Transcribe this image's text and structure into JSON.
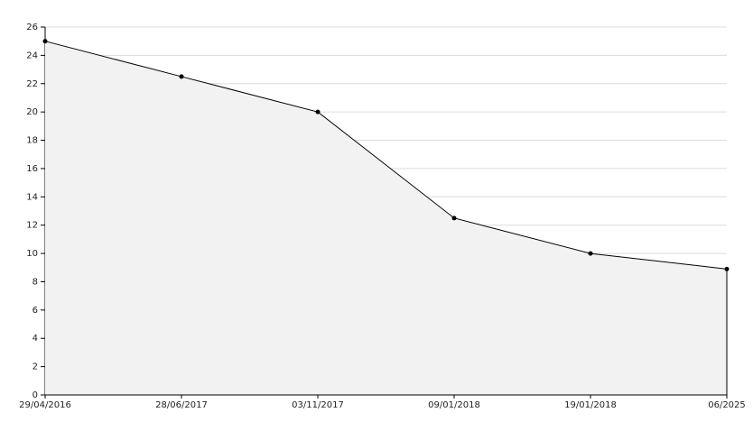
{
  "chart_data": {
    "type": "area",
    "categories": [
      "29/04/2016",
      "28/06/2017",
      "03/11/2017",
      "09/01/2018",
      "19/01/2018",
      "06/2025"
    ],
    "values": [
      25,
      22.5,
      20,
      12.5,
      10,
      8.9
    ],
    "color": "#000000",
    "fill": "#f2f2f2",
    "ylim": [
      0,
      26
    ],
    "yticks": [
      0,
      2,
      4,
      6,
      8,
      10,
      12,
      14,
      16,
      18,
      20,
      22,
      24,
      26
    ],
    "grid": true
  }
}
